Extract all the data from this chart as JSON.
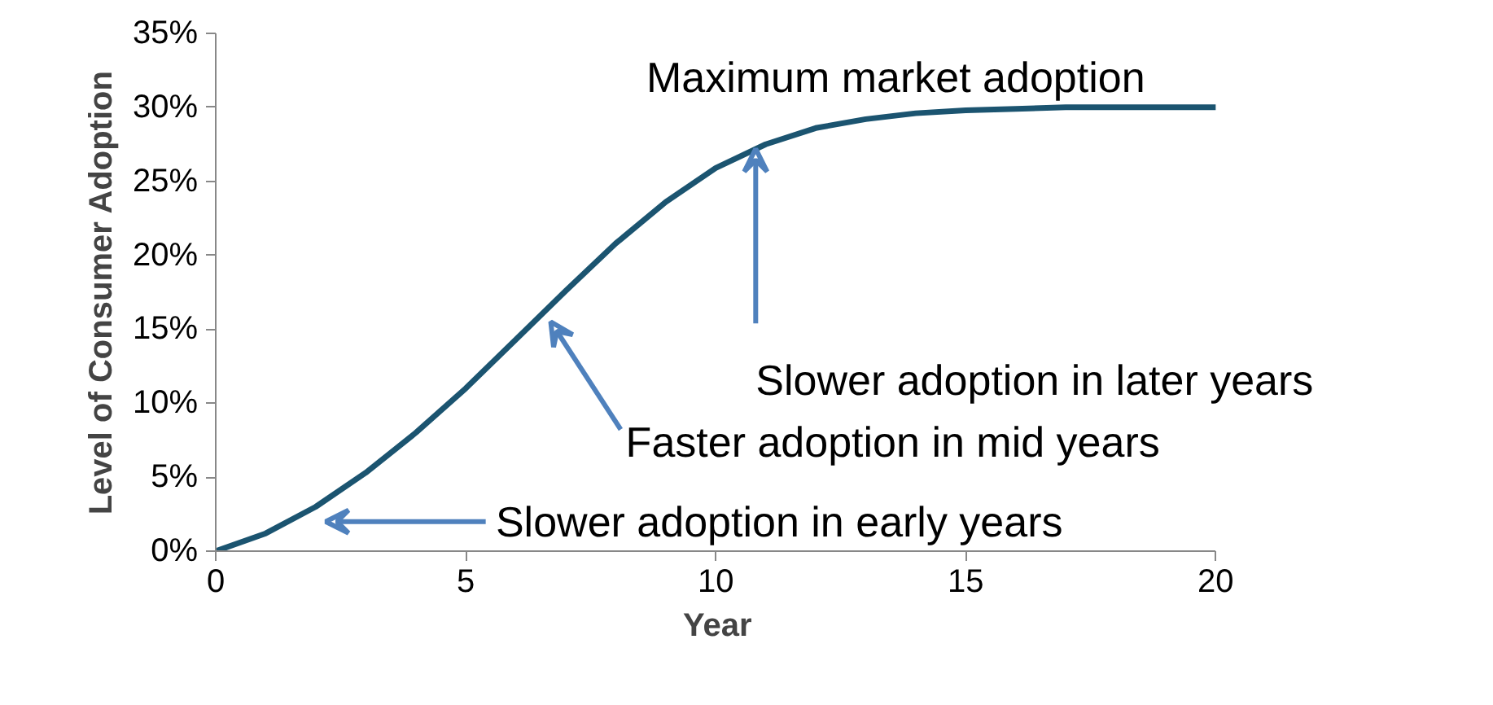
{
  "chart_data": {
    "type": "line",
    "xlabel": "Year",
    "ylabel": "Level of Consumer Adoption",
    "x": [
      0,
      1,
      2,
      3,
      4,
      5,
      6,
      7,
      8,
      9,
      10,
      11,
      12,
      13,
      14,
      15,
      16,
      17,
      18,
      19,
      20
    ],
    "series": [
      {
        "color": "#1b5470",
        "values": [
          0,
          1.2,
          3.0,
          5.3,
          8.0,
          11.0,
          14.3,
          17.6,
          20.8,
          23.6,
          25.9,
          27.5,
          28.6,
          29.2,
          29.6,
          29.8,
          29.9,
          30,
          30,
          30,
          30
        ]
      }
    ],
    "xlim": [
      0,
      20
    ],
    "xticks": [
      0,
      5,
      10,
      15,
      20
    ],
    "ylim": [
      0,
      35
    ],
    "yticks": [
      {
        "value": 0,
        "label": "0%"
      },
      {
        "value": 5,
        "label": "5%"
      },
      {
        "value": 10,
        "label": "10%"
      },
      {
        "value": 15,
        "label": "15%"
      },
      {
        "value": 20,
        "label": "20%"
      },
      {
        "value": 25,
        "label": "25%"
      },
      {
        "value": 30,
        "label": "30%"
      },
      {
        "value": 35,
        "label": "35%"
      }
    ],
    "grid": false,
    "marker": "none",
    "line_style": "solid",
    "annotations": [
      "Maximum market adoption",
      {
        "text": "Slower adoption in later years",
        "x": 10.8,
        "y": 27.2
      },
      "Faster adoption in mid years",
      "Slower adoption in early years"
    ]
  }
}
